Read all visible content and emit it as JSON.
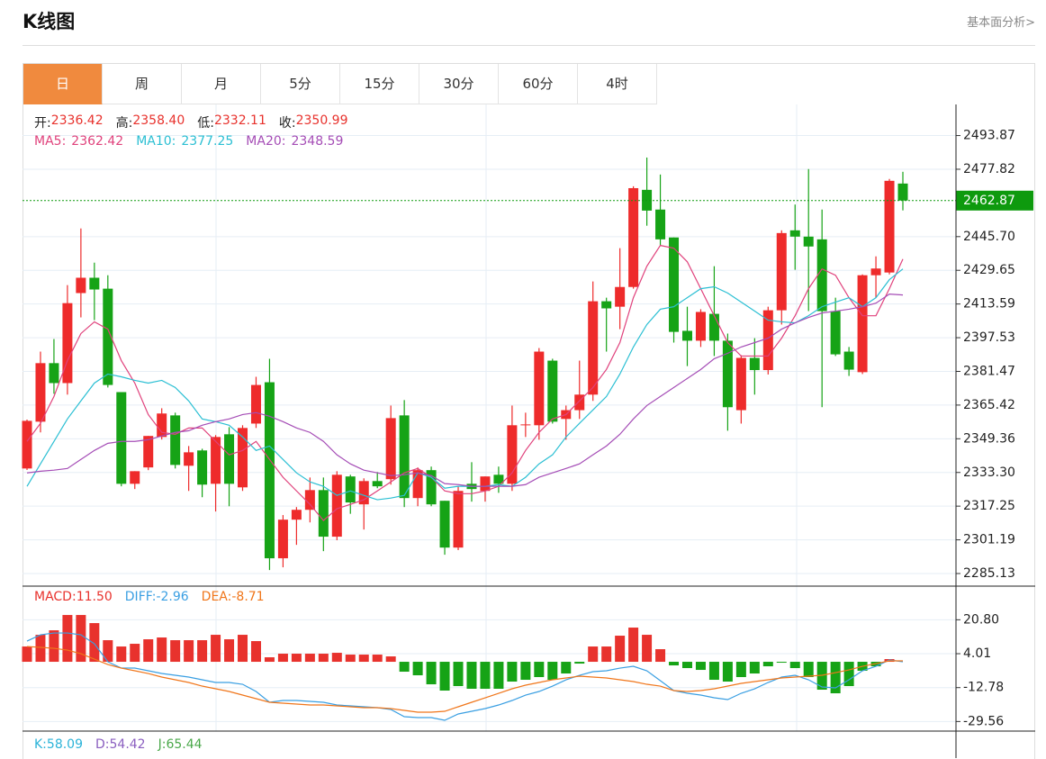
{
  "header": {
    "title": "K线图",
    "link": "基本面分析>"
  },
  "tabs": [
    "日",
    "周",
    "月",
    "5分",
    "15分",
    "30分",
    "60分",
    "4时"
  ],
  "active_tab": "日",
  "chart_data": [
    {
      "type": "candlestick",
      "info": [
        {
          "label": "开:",
          "value": "2336.42"
        },
        {
          "label": "高:",
          "value": "2358.40"
        },
        {
          "label": "低:",
          "value": "2332.11"
        },
        {
          "label": "收:",
          "value": "2350.99"
        }
      ],
      "info_color": "#e8322d",
      "up_color": "#ee2b2b",
      "down_color": "#16a316",
      "open": [
        2335.2,
        2357.5,
        2385.4,
        2375.9,
        2418.8,
        2426.1,
        2420.9,
        2371.6,
        2327.9,
        2335.7,
        2350.2,
        2360.5,
        2336.5,
        2343.8,
        2327.9,
        2351.5,
        2326.2,
        2356.6,
        2376.3,
        2292.4,
        2310.8,
        2315.5,
        2324.9,
        2302.7,
        2331.4,
        2318.1,
        2329.2,
        2330.1,
        2360.5,
        2321.1,
        2334.4,
        2319.8,
        2297.5,
        2327.9,
        2324.5,
        2332.2,
        2327.9,
        2355.8,
        2355.8,
        2386.6,
        2358.8,
        2363.0,
        2370.4,
        2414.9,
        2412.3,
        2421.7,
        2468.0,
        2458.6,
        2445.3,
        2400.8,
        2396.1,
        2408.9,
        2396.1,
        2363.0,
        2387.9,
        2382.1,
        2410.6,
        2448.7,
        2445.7,
        2444.4,
        2410.2,
        2390.9,
        2381.1,
        2427.3,
        2428.6,
        2471.0
      ],
      "high": [
        2358.5,
        2390.9,
        2396.9,
        2422.6,
        2449.6,
        2433.3,
        2427.3,
        2371.6,
        2333.9,
        2350.7,
        2363.9,
        2361.8,
        2345.9,
        2344.6,
        2351.1,
        2354.9,
        2355.8,
        2378.9,
        2387.5,
        2313.0,
        2316.8,
        2330.9,
        2330.9,
        2333.9,
        2332.2,
        2330.5,
        2333.5,
        2365.2,
        2367.8,
        2335.7,
        2336.1,
        2319.8,
        2326.7,
        2338.2,
        2331.4,
        2336.1,
        2365.2,
        2361.8,
        2392.6,
        2387.5,
        2365.2,
        2386.6,
        2424.3,
        2416.6,
        2440.2,
        2469.7,
        2483.4,
        2475.3,
        2445.3,
        2412.3,
        2411.1,
        2431.6,
        2399.5,
        2389.2,
        2397.3,
        2412.3,
        2448.7,
        2461.0,
        2477.9,
        2458.6,
        2416.6,
        2393.1,
        2427.7,
        2436.3,
        2473.2,
        2476.6
      ],
      "low": [
        2334.5,
        2352.4,
        2370.8,
        2370.4,
        2407.2,
        2405.9,
        2373.8,
        2326.7,
        2325.4,
        2334.4,
        2349.0,
        2335.2,
        2324.5,
        2321.5,
        2314.7,
        2317.2,
        2324.5,
        2354.5,
        2286.8,
        2288.1,
        2298.8,
        2309.5,
        2295.8,
        2301.0,
        2313.6,
        2306.1,
        2325.8,
        2327.5,
        2316.8,
        2317.2,
        2317.2,
        2294.1,
        2296.3,
        2319.4,
        2319.4,
        2323.6,
        2324.5,
        2350.2,
        2348.9,
        2356.6,
        2348.9,
        2358.8,
        2367.4,
        2390.9,
        2401.6,
        2420.9,
        2450.9,
        2441.4,
        2395.2,
        2384.0,
        2393.1,
        2388.8,
        2353.2,
        2356.6,
        2370.4,
        2380.0,
        2403.8,
        2429.9,
        2410.2,
        2364.4,
        2388.8,
        2379.3,
        2380.2,
        2416.6,
        2427.7,
        2458.2
      ],
      "close": [
        2357.9,
        2385.4,
        2375.9,
        2414.0,
        2426.1,
        2420.5,
        2375.0,
        2327.9,
        2333.9,
        2350.7,
        2361.4,
        2336.9,
        2342.9,
        2327.5,
        2350.2,
        2327.9,
        2354.5,
        2375.0,
        2292.4,
        2310.8,
        2315.5,
        2324.9,
        2302.7,
        2332.2,
        2319.0,
        2329.2,
        2326.7,
        2359.2,
        2321.1,
        2334.4,
        2318.1,
        2297.5,
        2324.5,
        2325.4,
        2331.4,
        2327.9,
        2355.8,
        2356.2,
        2390.9,
        2357.5,
        2363.0,
        2370.4,
        2414.9,
        2411.5,
        2421.7,
        2468.8,
        2458.1,
        2444.4,
        2400.3,
        2396.1,
        2409.8,
        2396.1,
        2364.4,
        2387.9,
        2382.1,
        2410.6,
        2447.4,
        2445.7,
        2441.0,
        2410.2,
        2389.6,
        2382.3,
        2427.3,
        2430.5,
        2472.3,
        2462.9
      ],
      "series": [
        {
          "name": "MA5:",
          "legend_value": "2362.42",
          "color": "#e0427c",
          "values": [
            2348.1,
            2356.7,
            2369.5,
            2386.6,
            2399.5,
            2405.1,
            2401.6,
            2386.6,
            2375.9,
            2360.9,
            2352.4,
            2351.5,
            2354.5,
            2354.5,
            2348.1,
            2341.7,
            2343.8,
            2348.1,
            2339.5,
            2331.0,
            2324.5,
            2318.1,
            2310.4,
            2316.0,
            2318.1,
            2320.3,
            2324.5,
            2328.8,
            2333.1,
            2335.2,
            2331.0,
            2324.5,
            2323.2,
            2323.2,
            2324.5,
            2326.7,
            2333.1,
            2343.8,
            2352.4,
            2358.8,
            2360.9,
            2367.4,
            2373.8,
            2382.4,
            2395.2,
            2416.6,
            2431.6,
            2441.5,
            2440.2,
            2433.7,
            2420.9,
            2408.0,
            2395.2,
            2388.8,
            2388.8,
            2388.8,
            2397.3,
            2408.0,
            2420.9,
            2430.3,
            2427.3,
            2416.6,
            2408.0,
            2408.0,
            2420.9,
            2435.0
          ]
        },
        {
          "name": "MA10:",
          "legend_value": "2377.25",
          "color": "#2bbfd3",
          "values": [
            2326.7,
            2337.4,
            2348.1,
            2358.8,
            2367.4,
            2375.9,
            2380.2,
            2378.9,
            2377.2,
            2375.9,
            2377.2,
            2373.8,
            2367.4,
            2358.8,
            2357.5,
            2355.8,
            2350.2,
            2343.8,
            2345.9,
            2339.5,
            2333.1,
            2328.8,
            2326.7,
            2322.4,
            2324.5,
            2322.4,
            2320.3,
            2321.1,
            2322.4,
            2333.1,
            2331.0,
            2325.8,
            2326.7,
            2326.7,
            2326.7,
            2327.5,
            2326.7,
            2331.0,
            2337.4,
            2341.7,
            2350.2,
            2356.7,
            2363.1,
            2369.5,
            2380.2,
            2393.1,
            2403.8,
            2411.1,
            2412.3,
            2416.6,
            2420.9,
            2421.8,
            2418.8,
            2414.5,
            2410.2,
            2405.9,
            2405.1,
            2404.6,
            2408.0,
            2412.3,
            2414.5,
            2416.6,
            2412.3,
            2416.6,
            2425.2,
            2430.3
          ]
        },
        {
          "name": "MA20:",
          "legend_value": "2348.59",
          "color": "#a54db6",
          "values": [
            2333.1,
            2333.9,
            2334.4,
            2335.2,
            2339.5,
            2343.8,
            2347.2,
            2348.1,
            2348.1,
            2348.9,
            2350.7,
            2352.4,
            2353.2,
            2355.8,
            2357.5,
            2358.8,
            2360.9,
            2361.8,
            2360.1,
            2357.5,
            2354.5,
            2352.4,
            2348.1,
            2341.7,
            2337.4,
            2334.4,
            2333.1,
            2331.8,
            2332.2,
            2333.1,
            2331.8,
            2328.0,
            2327.5,
            2326.7,
            2326.7,
            2326.7,
            2326.7,
            2327.5,
            2331.0,
            2333.1,
            2335.2,
            2337.4,
            2341.7,
            2345.9,
            2351.5,
            2358.8,
            2365.2,
            2369.5,
            2373.8,
            2378.1,
            2382.4,
            2387.5,
            2390.1,
            2393.1,
            2395.2,
            2397.3,
            2401.6,
            2404.6,
            2407.2,
            2409.3,
            2410.2,
            2411.1,
            2412.3,
            2414.0,
            2418.3,
            2417.9
          ]
        }
      ],
      "last_price": 2462.87,
      "last_price_color": "#0e9a0e",
      "ylim": [
        2281.7,
        2508.7
      ],
      "yticks": [
        2285.13,
        2301.19,
        2317.25,
        {
          "value": 2333.3,
          "label": "2333.30"
        },
        2349.36,
        2365.42,
        2381.47,
        2397.53,
        2413.59,
        2429.65,
        {
          "value": 2445.7,
          "label": "2445.70"
        },
        2477.82,
        2493.87
      ],
      "grid": true
    },
    {
      "type": "macd",
      "up_color": "#ee2b2b",
      "down_color": "#16a316",
      "series": [
        {
          "name": "MACD:",
          "legend_value": "11.50",
          "color": "#e8322d",
          "style": "bar",
          "values": [
            7.57,
            13.36,
            15.59,
            23.16,
            23.16,
            19.15,
            10.69,
            7.57,
            8.91,
            11.14,
            12.03,
            10.69,
            10.69,
            10.69,
            13.36,
            11.14,
            13.36,
            10.24,
            2.23,
            4.01,
            4.01,
            4.01,
            4.01,
            4.45,
            3.56,
            3.56,
            3.56,
            2.67,
            -4.9,
            -6.68,
            -11.14,
            -14.25,
            -12.03,
            -13.36,
            -13.36,
            -13.36,
            -9.8,
            -8.91,
            -7.57,
            -8.91,
            -5.79,
            -0.89,
            7.57,
            7.57,
            12.92,
            16.93,
            13.36,
            6.24,
            -1.78,
            -3.12,
            -4.01,
            -8.91,
            -9.8,
            -7.57,
            -5.79,
            -2.23,
            -0.45,
            -3.12,
            -7.57,
            -13.81,
            -15.59,
            -12.03,
            -4.45,
            -2.23,
            1.34,
            0
          ]
        },
        {
          "name": "DIFF:",
          "legend_value": "-2.96",
          "color": "#3a9fe2",
          "style": "line",
          "values": [
            10.24,
            13.36,
            14.25,
            14.25,
            13.36,
            8.91,
            0,
            -3.12,
            -3.12,
            -4.45,
            -5.79,
            -6.68,
            -7.57,
            -8.91,
            -10.24,
            -10.24,
            -11.14,
            -14.7,
            -20.04,
            -19.15,
            -19.15,
            -19.6,
            -20.04,
            -21.38,
            -21.83,
            -22.27,
            -22.72,
            -23.61,
            -27.17,
            -27.62,
            -27.62,
            -28.95,
            -25.83,
            -24.5,
            -23.16,
            -21.38,
            -19.15,
            -16.48,
            -14.7,
            -12.03,
            -8.91,
            -6.68,
            -4.9,
            -4.45,
            -3.12,
            -2.23,
            -4.45,
            -9.35,
            -14.25,
            -15.59,
            -16.48,
            -17.82,
            -18.71,
            -15.59,
            -13.36,
            -10.24,
            -7.57,
            -6.68,
            -8.91,
            -12.47,
            -12.92,
            -8.91,
            -4.45,
            -2.23,
            0.89,
            0
          ]
        },
        {
          "name": "DEA:",
          "legend_value": "-8.71",
          "color": "#f0761b",
          "style": "line",
          "values": [
            7.57,
            7.13,
            6.68,
            5.79,
            4.01,
            1.34,
            -1.34,
            -3.12,
            -4.45,
            -5.79,
            -7.57,
            -8.91,
            -10.24,
            -12.03,
            -13.36,
            -14.7,
            -16.48,
            -18.26,
            -20.04,
            -20.49,
            -20.93,
            -21.38,
            -21.38,
            -21.83,
            -22.27,
            -22.72,
            -22.72,
            -23.16,
            -24.05,
            -24.94,
            -24.94,
            -24.5,
            -22.27,
            -20.04,
            -17.82,
            -15.59,
            -13.36,
            -11.58,
            -10.24,
            -8.91,
            -8.02,
            -7.13,
            -7.57,
            -8.02,
            -8.91,
            -9.8,
            -11.14,
            -12.03,
            -14.25,
            -14.7,
            -14.25,
            -13.36,
            -12.03,
            -10.69,
            -9.8,
            -8.91,
            -8.02,
            -7.57,
            -7.13,
            -6.68,
            -5.35,
            -4.01,
            -2.23,
            -0.89,
            0.45,
            0.45
          ]
        }
      ],
      "ylim": [
        -34.3,
        37.0
      ],
      "yticks": [
        {
          "value": 20.8,
          "label": "20.80"
        },
        4.01,
        -12.78,
        -29.56
      ],
      "grid": true
    }
  ],
  "indicator_labels": [
    {
      "name": "K:",
      "value": "58.09",
      "color": "#2bb3d8"
    },
    {
      "name": "D:",
      "value": "54.42",
      "color": "#8b5fc0"
    },
    {
      "name": "J:",
      "value": "65.44",
      "color": "#4aa84a"
    }
  ]
}
